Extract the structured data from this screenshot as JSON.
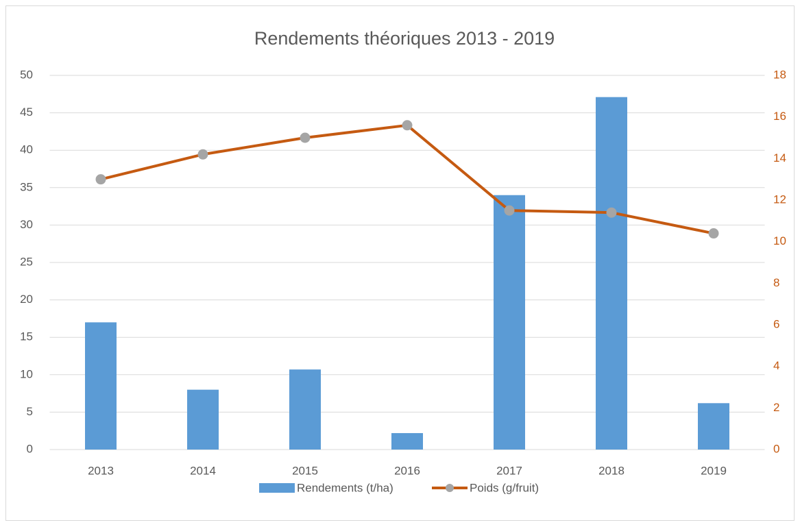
{
  "chart_data": {
    "type": "bar_line",
    "title": "Rendements théoriques 2013 - 2019",
    "categories": [
      "2013",
      "2014",
      "2015",
      "2016",
      "2017",
      "2018",
      "2019"
    ],
    "series": [
      {
        "name": "Rendements (t/ha)",
        "type": "bar",
        "color": "#5b9bd5",
        "values": [
          17,
          8,
          10.7,
          2.2,
          34,
          47.1,
          6.2
        ]
      },
      {
        "name": "Poids (g/fruit)",
        "type": "line",
        "axis": "y2",
        "color": "#c55a11",
        "marker_color": "#a5a5a5",
        "values": [
          13,
          14.2,
          15,
          15.6,
          11.5,
          11.4,
          10.4
        ]
      }
    ],
    "ylim": [
      0,
      50
    ],
    "yticks": [
      0,
      5,
      10,
      15,
      20,
      25,
      30,
      35,
      40,
      45,
      50
    ],
    "y2lim": [
      0,
      18
    ],
    "y2ticks": [
      0,
      2,
      4,
      6,
      8,
      10,
      12,
      14,
      16,
      18
    ],
    "y2_color": "#c55a11",
    "grid": true,
    "legend": "bottom"
  }
}
